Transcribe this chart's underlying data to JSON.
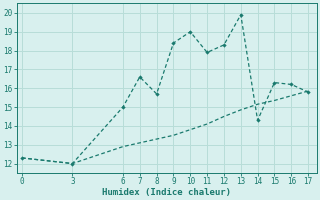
{
  "line1_x": [
    0,
    3,
    6,
    7,
    8,
    9,
    10,
    11,
    12,
    13,
    14,
    15,
    16,
    17
  ],
  "line1_y": [
    12.3,
    12.0,
    15.0,
    16.6,
    15.7,
    18.4,
    19.0,
    17.9,
    18.3,
    19.9,
    14.3,
    16.3,
    16.2,
    15.8
  ],
  "line2_x": [
    0,
    3,
    6,
    7,
    8,
    9,
    10,
    11,
    12,
    13,
    14,
    15,
    16,
    17
  ],
  "line2_y": [
    12.3,
    12.0,
    12.9,
    13.1,
    13.3,
    13.5,
    13.8,
    14.1,
    14.5,
    14.85,
    15.15,
    15.35,
    15.6,
    15.85
  ],
  "line_color": "#1a7a6e",
  "bg_color": "#d8f0ee",
  "grid_color": "#b8ddd8",
  "xlabel": "Humidex (Indice chaleur)",
  "xlim": [
    -0.3,
    17.5
  ],
  "ylim": [
    11.5,
    20.5
  ],
  "xticks": [
    0,
    3,
    6,
    7,
    8,
    9,
    10,
    11,
    12,
    13,
    14,
    15,
    16,
    17
  ],
  "yticks": [
    12,
    13,
    14,
    15,
    16,
    17,
    18,
    19,
    20
  ]
}
